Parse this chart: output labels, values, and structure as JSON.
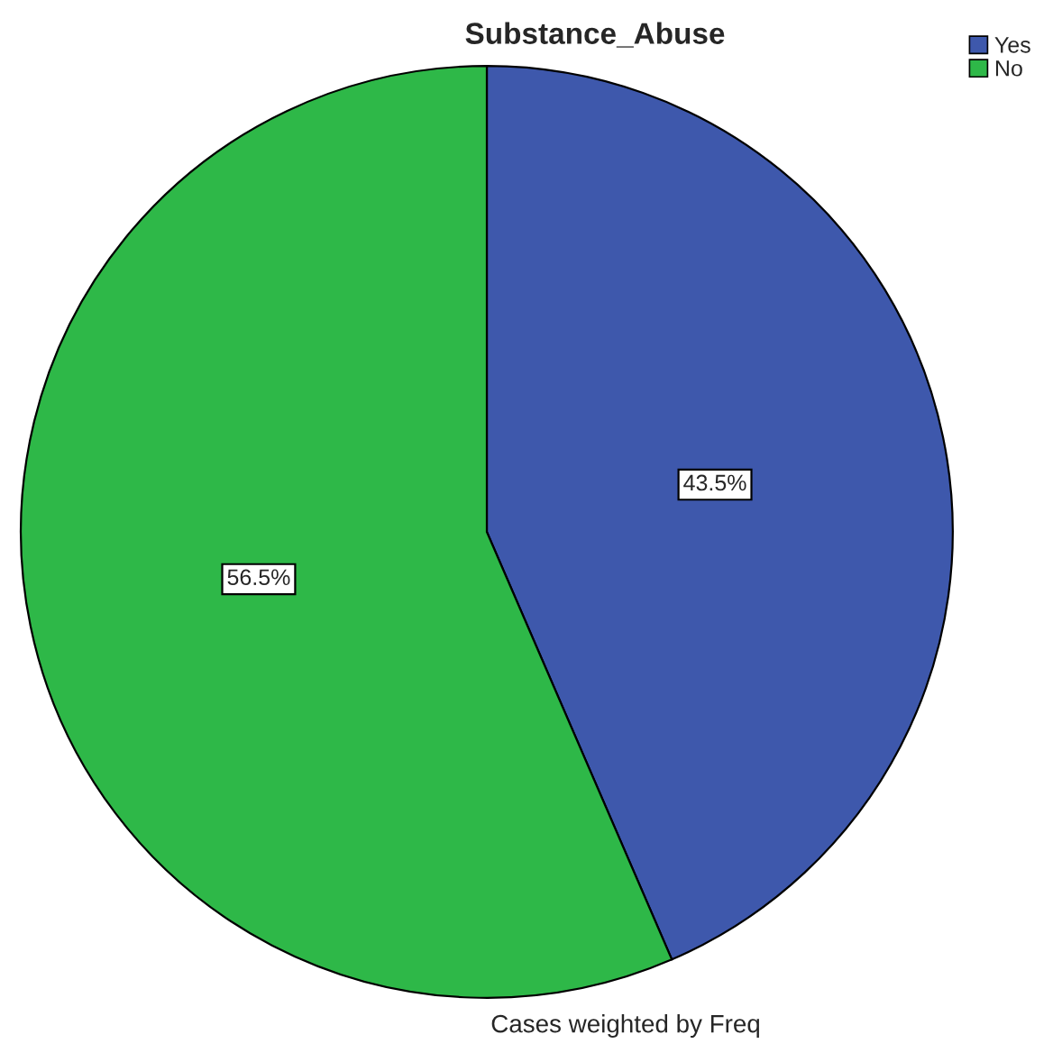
{
  "chart_data": {
    "type": "pie",
    "title": "Substance_Abuse",
    "categories": [
      "Yes",
      "No"
    ],
    "values": [
      43.5,
      56.5
    ],
    "colors": [
      "#3e58ac",
      "#2eb848"
    ],
    "value_labels": [
      "43.5%",
      "56.5%"
    ],
    "legend": "top right",
    "annotations": [
      "Cases weighted by Freq"
    ]
  }
}
